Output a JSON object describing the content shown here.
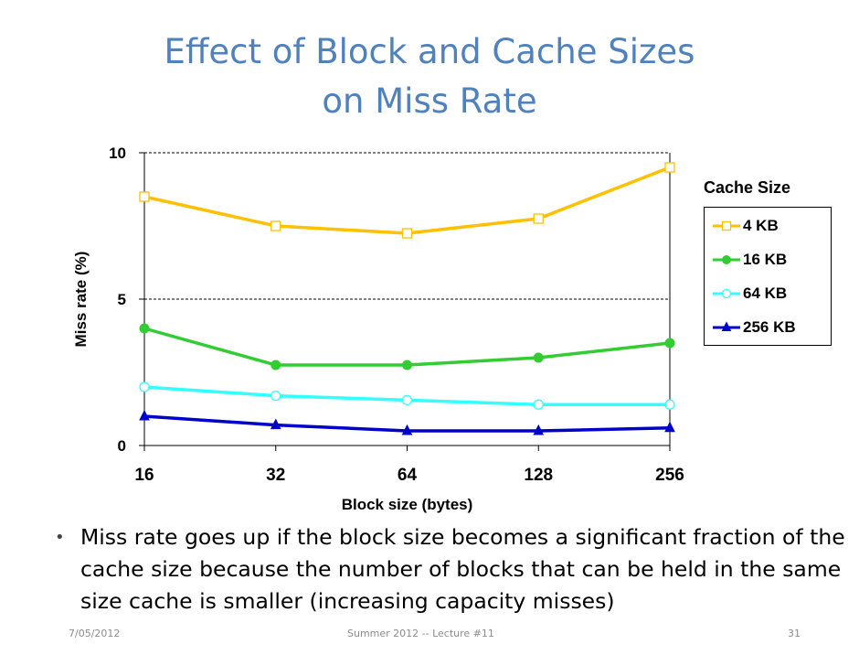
{
  "slide": {
    "title_line1": "Effect of Block and Cache Sizes",
    "title_line2": "on Miss Rate",
    "bullet": "Miss rate goes up if the block size becomes a significant fraction of the cache size because the number of blocks that can be held in the same size cache is smaller (increasing capacity misses)",
    "footer_left": "7/05/2012",
    "footer_center": "Summer 2012 -- Lecture #11",
    "footer_right": "31"
  },
  "chart_data": {
    "type": "line",
    "title": "",
    "xlabel": "Block size (bytes)",
    "ylabel": "Miss rate (%)",
    "categories": [
      "16",
      "32",
      "64",
      "128",
      "256"
    ],
    "yticks": [
      "0",
      "5",
      "10"
    ],
    "ylim": [
      0,
      10
    ],
    "gridlines": [
      5,
      10
    ],
    "legend_title": "Cache Size",
    "legend_position": "right",
    "series": [
      {
        "name": "4 KB",
        "color": "#ffc000",
        "marker": "square-open",
        "values": [
          8.5,
          7.5,
          7.25,
          7.75,
          9.5
        ]
      },
      {
        "name": "16 KB",
        "color": "#33cc33",
        "marker": "circle-filled",
        "values": [
          4.0,
          2.75,
          2.75,
          3.0,
          3.5
        ]
      },
      {
        "name": "64 KB",
        "color": "#33ffff",
        "marker": "circle-open",
        "values": [
          2.0,
          1.7,
          1.55,
          1.4,
          1.4
        ]
      },
      {
        "name": "256 KB",
        "color": "#0000cc",
        "marker": "triangle-filled",
        "values": [
          1.0,
          0.7,
          0.5,
          0.5,
          0.6
        ]
      }
    ]
  }
}
